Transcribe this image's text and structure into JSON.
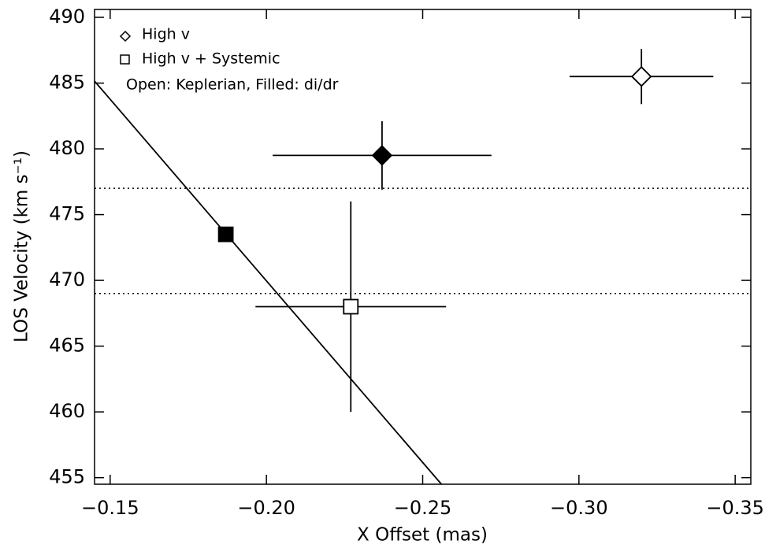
{
  "chart_data": {
    "type": "errorbar",
    "xlabel": "X Offset (mas)",
    "ylabel": "LOS Velocity (km s⁻¹)",
    "xlim": [
      -0.145,
      -0.355
    ],
    "ylim": [
      454.5,
      490.6
    ],
    "xticks": [
      {
        "value": -0.15,
        "label": "−0.15"
      },
      {
        "value": -0.2,
        "label": "−0.20"
      },
      {
        "value": -0.25,
        "label": "−0.25"
      },
      {
        "value": -0.3,
        "label": "−0.30"
      },
      {
        "value": -0.35,
        "label": "−0.35"
      }
    ],
    "yticks": [
      455,
      460,
      465,
      470,
      475,
      480,
      485,
      490
    ],
    "hlines": [
      477,
      469
    ],
    "series": [
      {
        "name": "High v",
        "marker": "diamond",
        "color": "#000000",
        "x": [
          -0.32,
          -0.237
        ],
        "values": [
          485.5,
          479.5
        ],
        "xerr": [
          0.023,
          0.035
        ],
        "yerr": [
          2.1,
          2.6
        ],
        "filled": [
          false,
          true
        ]
      },
      {
        "name": "High v + Systemic",
        "marker": "square",
        "color": "#000000",
        "x": [
          -0.227,
          -0.187
        ],
        "values": [
          468,
          473.5
        ],
        "xerr": [
          0.0305,
          null
        ],
        "yerr": [
          8,
          null
        ],
        "filled": [
          false,
          true
        ]
      }
    ],
    "model_line": {
      "x": [
        -0.145,
        -0.256
      ],
      "values": [
        485.15,
        454.5
      ]
    },
    "legend_note": "Open: Keplerian, Filled: di/dr"
  }
}
